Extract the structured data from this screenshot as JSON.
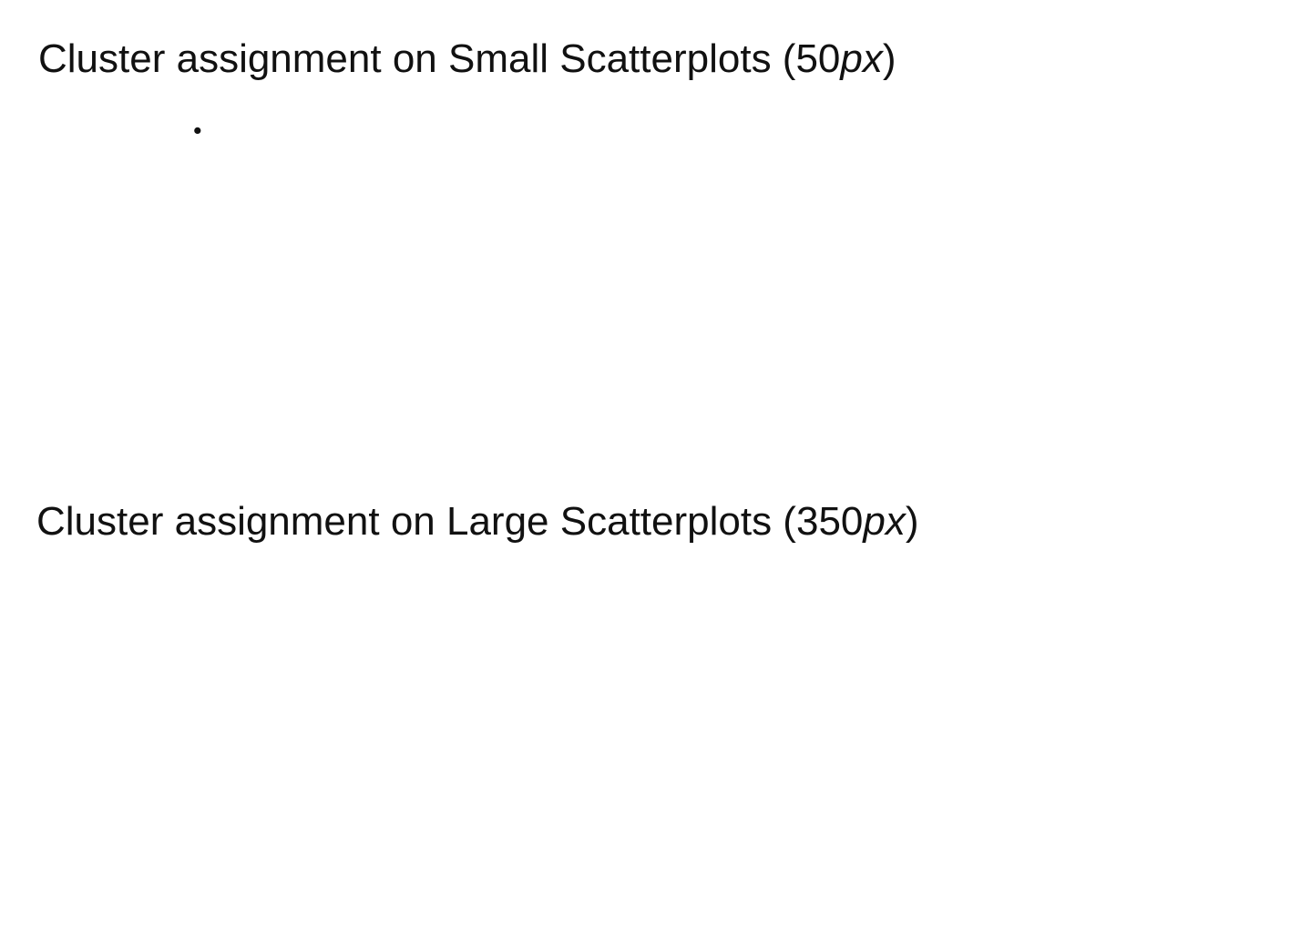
{
  "sections": [
    {
      "title_prefix": "Cluster assignment on Small Scatterplots (",
      "title_size": "50",
      "title_unit": "px",
      "title_suffix": ")"
    },
    {
      "title_prefix": "Cluster assignment on Large Scatterplots (",
      "title_size": "350",
      "title_unit": "px",
      "title_suffix": ")"
    }
  ],
  "colors": {
    "blue": "#2f6eb5",
    "orange": "#f08a2c",
    "green": "#3d9c3a",
    "black": "#111111",
    "red": "#cc2a2a",
    "purple": "#8a5dc4",
    "brown": "#7a5243",
    "pink": "#d978c6",
    "gray": "#888888",
    "olive": "#bdbd2a",
    "cyan": "#3cbdd0"
  },
  "chart_data": [
    {
      "type": "scatter",
      "clusters": [
        {
          "color": "black",
          "points": [
            [
              5.2,
              9.9
            ]
          ]
        },
        {
          "color": "blue",
          "points": []
        }
      ]
    }
  ]
}
